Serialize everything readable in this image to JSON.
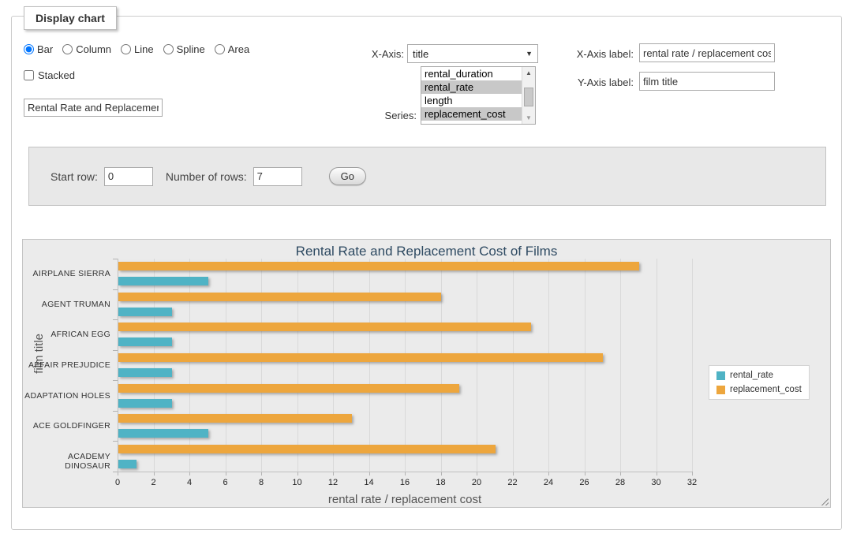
{
  "fieldset": {
    "legend": "Display chart"
  },
  "chart_type_options": [
    {
      "label": "Bar",
      "selected": true
    },
    {
      "label": "Column",
      "selected": false
    },
    {
      "label": "Line",
      "selected": false
    },
    {
      "label": "Spline",
      "selected": false
    },
    {
      "label": "Area",
      "selected": false
    }
  ],
  "stacked": {
    "label": "Stacked",
    "checked": false
  },
  "title_input": {
    "value": "Rental Rate and Replacement Cost of Films"
  },
  "x_axis_select": {
    "label": "X-Axis:",
    "selected_value": "title",
    "arrow_icon": "▼"
  },
  "series_select": {
    "label": "Series:",
    "options": [
      {
        "label": "rental_duration",
        "selected": false
      },
      {
        "label": "rental_rate",
        "selected": true
      },
      {
        "label": "length",
        "selected": false
      },
      {
        "label": "replacement_cost",
        "selected": true
      }
    ],
    "scrollbar": {
      "up_icon": "▲",
      "down_icon": "▼"
    }
  },
  "x_axis_label_input": {
    "label": "X-Axis label:",
    "value": "rental rate / replacement cost"
  },
  "y_axis_label_input": {
    "label": "Y-Axis label:",
    "value": "film title"
  },
  "rows_form": {
    "start_row_label": "Start row:",
    "start_row_value": "0",
    "num_rows_label": "Number of rows:",
    "num_rows_value": "7",
    "go_label": "Go"
  },
  "chart_data": {
    "type": "bar",
    "title": "Rental Rate and Replacement Cost of Films",
    "categories": [
      "AIRPLANE SIERRA",
      "AGENT TRUMAN",
      "AFRICAN EGG",
      "AFFAIR PREJUDICE",
      "ADAPTATION HOLES",
      "ACE GOLDFINGER",
      "ACADEMY DINOSAUR"
    ],
    "series": [
      {
        "name": "rental_rate",
        "color": "#4FB3C5",
        "values": [
          4.99,
          2.99,
          2.99,
          2.99,
          2.99,
          4.99,
          0.99
        ]
      },
      {
        "name": "replacement_cost",
        "color": "#EDA63D",
        "values": [
          28.99,
          17.99,
          22.99,
          26.99,
          18.99,
          12.99,
          20.99
        ]
      }
    ],
    "group_draw_order_top_to_bottom": [
      "replacement_cost",
      "rental_rate"
    ],
    "xlabel": "rental rate / replacement cost",
    "ylabel": "film title",
    "value_axis": {
      "min": 0,
      "max": 32,
      "tick_step": 2
    },
    "legend_position": "right",
    "grid": true
  }
}
